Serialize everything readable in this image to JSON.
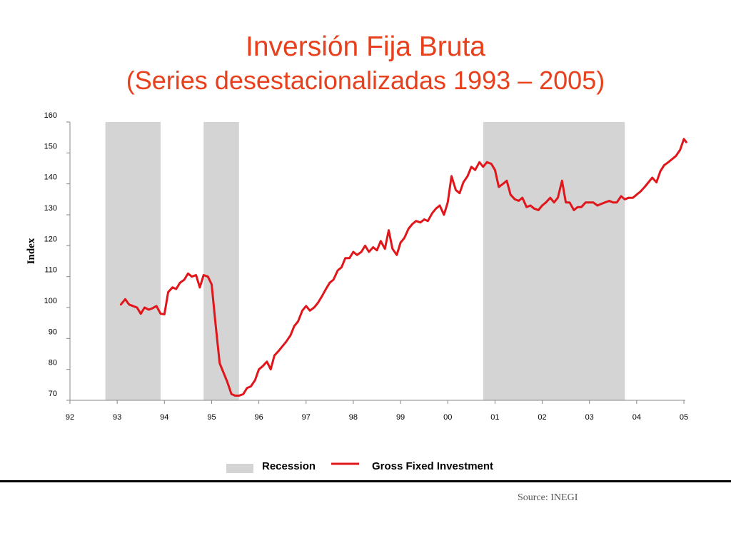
{
  "slide": {
    "title": "Inversión Fija Bruta",
    "subtitle": "(Series desestacionalizadas 1993 – 2005)",
    "source": "Source: INEGI"
  },
  "colors": {
    "title": "#e8401c",
    "series": "#e0161b",
    "recession": "#d4d4d4",
    "axis": "#888888"
  },
  "chart_data": {
    "type": "line",
    "title": "Inversión Fija Bruta",
    "subtitle": "(Series desestacionalizadas 1993 – 2005)",
    "xlabel": "",
    "ylabel": "Index",
    "xlim": [
      1992,
      2005.05
    ],
    "ylim": [
      70,
      160
    ],
    "x_ticks": [
      {
        "value": 1992,
        "label": "92"
      },
      {
        "value": 1993,
        "label": "93"
      },
      {
        "value": 1994,
        "label": "94"
      },
      {
        "value": 1995,
        "label": "95"
      },
      {
        "value": 1996,
        "label": "96"
      },
      {
        "value": 1997,
        "label": "97"
      },
      {
        "value": 1998,
        "label": "98"
      },
      {
        "value": 1999,
        "label": "99"
      },
      {
        "value": 2000,
        "label": "00"
      },
      {
        "value": 2001,
        "label": "01"
      },
      {
        "value": 2002,
        "label": "02"
      },
      {
        "value": 2003,
        "label": "03"
      },
      {
        "value": 2004,
        "label": "04"
      },
      {
        "value": 2005,
        "label": "05"
      }
    ],
    "y_ticks": [
      70,
      80,
      90,
      100,
      110,
      120,
      130,
      140,
      150,
      160
    ],
    "grid": false,
    "legend": "bottom-center",
    "legend_entries": [
      "Recession",
      "Gross Fixed Investment"
    ],
    "recessions": [
      {
        "start": 1992.75,
        "end": 1993.92
      },
      {
        "start": 1994.83,
        "end": 1995.58
      },
      {
        "start": 2000.75,
        "end": 2003.75
      }
    ],
    "series": [
      {
        "name": "Gross Fixed Investment",
        "x": [
          1993.08,
          1993.17,
          1993.25,
          1993.33,
          1993.42,
          1993.5,
          1993.58,
          1993.67,
          1993.75,
          1993.83,
          1993.92,
          1994.0,
          1994.08,
          1994.17,
          1994.25,
          1994.33,
          1994.42,
          1994.5,
          1994.58,
          1994.67,
          1994.75,
          1994.83,
          1994.92,
          1995.0,
          1995.08,
          1995.17,
          1995.25,
          1995.33,
          1995.42,
          1995.5,
          1995.58,
          1995.67,
          1995.75,
          1995.83,
          1995.92,
          1996.0,
          1996.08,
          1996.17,
          1996.25,
          1996.33,
          1996.42,
          1996.5,
          1996.58,
          1996.67,
          1996.75,
          1996.83,
          1996.92,
          1997.0,
          1997.08,
          1997.17,
          1997.25,
          1997.33,
          1997.42,
          1997.5,
          1997.58,
          1997.67,
          1997.75,
          1997.83,
          1997.92,
          1998.0,
          1998.08,
          1998.17,
          1998.25,
          1998.33,
          1998.42,
          1998.5,
          1998.58,
          1998.67,
          1998.75,
          1998.83,
          1998.92,
          1999.0,
          1999.08,
          1999.17,
          1999.25,
          1999.33,
          1999.42,
          1999.5,
          1999.58,
          1999.67,
          1999.75,
          1999.83,
          1999.92,
          2000.0,
          2000.08,
          2000.17,
          2000.25,
          2000.33,
          2000.42,
          2000.5,
          2000.58,
          2000.67,
          2000.75,
          2000.83,
          2000.92,
          2001.0,
          2001.08,
          2001.17,
          2001.25,
          2001.33,
          2001.42,
          2001.5,
          2001.58,
          2001.67,
          2001.75,
          2001.83,
          2001.92,
          2002.0,
          2002.08,
          2002.17,
          2002.25,
          2002.33,
          2002.42,
          2002.5,
          2002.58,
          2002.67,
          2002.75,
          2002.83,
          2002.92,
          2003.0,
          2003.08,
          2003.17,
          2003.25,
          2003.33,
          2003.42,
          2003.5,
          2003.58,
          2003.67,
          2003.75,
          2003.83,
          2003.92,
          2004.0,
          2004.08,
          2004.17,
          2004.25,
          2004.33,
          2004.42,
          2004.5,
          2004.58,
          2004.67,
          2004.75,
          2004.83,
          2004.92,
          2005.0,
          2005.05
        ],
        "values": [
          101,
          102.7,
          101,
          100.5,
          100,
          98,
          100,
          99.3,
          99.8,
          100.5,
          98,
          97.8,
          105,
          106.5,
          106,
          108,
          109,
          111,
          110,
          110.5,
          106.5,
          110.5,
          110,
          107.5,
          95,
          82,
          79,
          76,
          72,
          71.5,
          71.5,
          72,
          74,
          74.5,
          76.5,
          80,
          81,
          82.5,
          80,
          84.5,
          86,
          87.5,
          89,
          91,
          94,
          95.5,
          99,
          100.5,
          99,
          100,
          101.5,
          103.5,
          106,
          108,
          109,
          112,
          113,
          116,
          116,
          118,
          117,
          118,
          120,
          118,
          119.5,
          118.5,
          121.5,
          119,
          125,
          119,
          117,
          121,
          122.5,
          125.5,
          127,
          128,
          127.5,
          128.5,
          128,
          130.5,
          132,
          133,
          130,
          134,
          142.5,
          138,
          137,
          140.5,
          142.5,
          145.5,
          144.5,
          147,
          145.5,
          147,
          146.5,
          144.5,
          139,
          140,
          141,
          136.5,
          135,
          134.5,
          135.5,
          132.5,
          133,
          132,
          131.5,
          133,
          134,
          135.5,
          134,
          135.5,
          141,
          134,
          134,
          131.5,
          132.5,
          132.5,
          134,
          134,
          134,
          133,
          133.5,
          134,
          134.5,
          134,
          134,
          136,
          135,
          135.5,
          135.5,
          136.5,
          137.5,
          139,
          140.5,
          142,
          140.5,
          144,
          146,
          147,
          148,
          149,
          151,
          154.5,
          153.5
        ]
      }
    ]
  }
}
